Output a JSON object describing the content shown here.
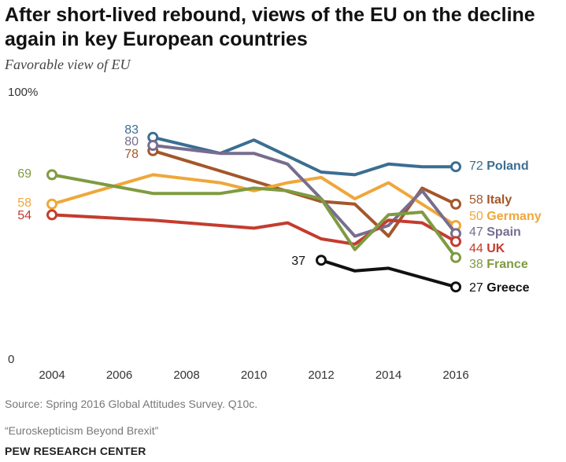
{
  "header": {
    "title": "After short-lived rebound, views of the EU on the decline again in key European countries",
    "subtitle": "Favorable view of EU"
  },
  "footer": {
    "source": "Source: Spring 2016 Global Attitudes Survey. Q10c.",
    "report": "“Euroskepticism Beyond Brexit”",
    "org": "PEW RESEARCH CENTER"
  },
  "chart_data": {
    "type": "line",
    "title": "After short-lived rebound, views of the EU on the decline again in key European countries",
    "subtitle": "Favorable view of EU",
    "xlabel": "",
    "ylabel": "",
    "xlim": [
      2004,
      2016
    ],
    "ylim": [
      0,
      100
    ],
    "x_ticks": [
      2004,
      2006,
      2008,
      2010,
      2012,
      2014,
      2016
    ],
    "y_ticks": [
      {
        "value": 0,
        "label": "0"
      },
      {
        "value": 100,
        "label": "100%"
      }
    ],
    "grid": false,
    "legend": "direct labels at line ends",
    "series": [
      {
        "name": "Poland",
        "color": "#3b6e92",
        "x": [
          2007,
          2009,
          2010,
          2012,
          2013,
          2014,
          2015,
          2016
        ],
        "y": [
          83,
          77,
          82,
          70,
          69,
          73,
          72,
          72
        ],
        "start_label": "83",
        "end_label": "72"
      },
      {
        "name": "Italy",
        "color": "#a4572a",
        "x": [
          2007,
          2012,
          2013,
          2014,
          2015,
          2016
        ],
        "y": [
          78,
          59,
          58,
          46,
          64,
          58
        ],
        "start_label": "78",
        "end_label": "58"
      },
      {
        "name": "Germany",
        "color": "#efa73a",
        "x": [
          2004,
          2007,
          2009,
          2010,
          2011,
          2012,
          2013,
          2014,
          2015,
          2016
        ],
        "y": [
          58,
          69,
          66,
          63,
          66,
          68,
          60,
          66,
          58,
          50
        ],
        "start_label": "58",
        "end_label": "50"
      },
      {
        "name": "Spain",
        "color": "#776d8f",
        "x": [
          2007,
          2009,
          2010,
          2011,
          2012,
          2013,
          2014,
          2015,
          2016
        ],
        "y": [
          80,
          77,
          77,
          73,
          60,
          46,
          50,
          63,
          47
        ],
        "start_label": "80",
        "end_label": "47"
      },
      {
        "name": "UK",
        "color": "#c43c2e",
        "x": [
          2004,
          2007,
          2009,
          2010,
          2011,
          2012,
          2013,
          2014,
          2015,
          2016
        ],
        "y": [
          54,
          52,
          50,
          49,
          51,
          45,
          43,
          52,
          51,
          44
        ],
        "start_label": "54",
        "end_label": "44"
      },
      {
        "name": "France",
        "color": "#7f9b41",
        "x": [
          2004,
          2007,
          2009,
          2010,
          2011,
          2012,
          2013,
          2014,
          2015,
          2016
        ],
        "y": [
          69,
          62,
          62,
          64,
          63,
          60,
          41,
          54,
          55,
          38
        ],
        "start_label": "69",
        "end_label": "38"
      },
      {
        "name": "Greece",
        "color": "#111111",
        "x": [
          2012,
          2013,
          2014,
          2016
        ],
        "y": [
          37,
          33,
          34,
          27
        ],
        "start_label": "37",
        "end_label": "27"
      }
    ]
  }
}
